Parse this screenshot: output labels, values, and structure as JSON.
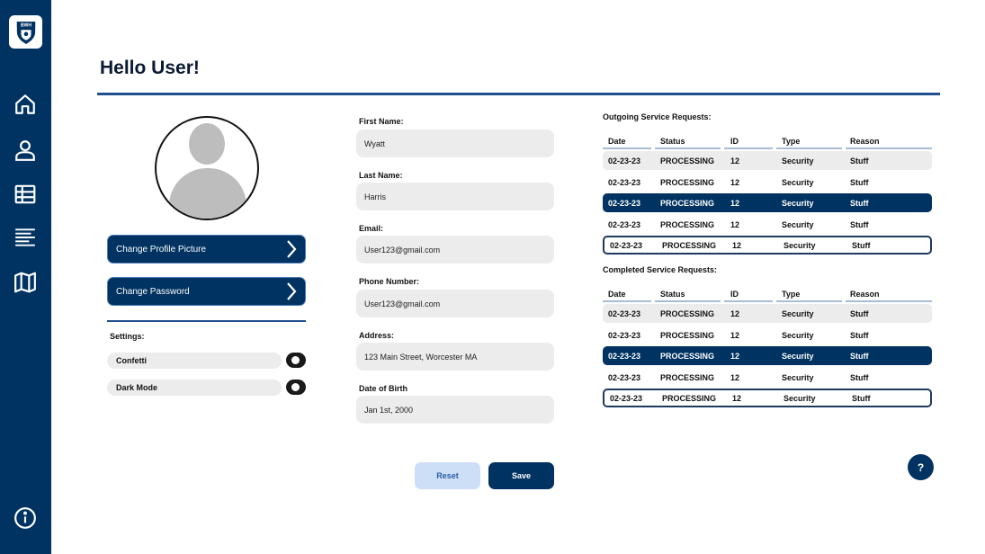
{
  "sidebar": {
    "logo_text": "BWH",
    "items": [
      {
        "icon": "home-icon"
      },
      {
        "icon": "user-icon"
      },
      {
        "icon": "table-icon"
      },
      {
        "icon": "list-icon"
      },
      {
        "icon": "map-icon"
      }
    ],
    "info_icon": "info-icon"
  },
  "header": {
    "title": "Hello User!"
  },
  "profile": {
    "change_picture_label": "Change Profile Picture",
    "change_password_label": "Change Password",
    "settings_label": "Settings:",
    "settings": [
      {
        "label": "Confetti"
      },
      {
        "label": "Dark Mode"
      }
    ]
  },
  "form": {
    "fields": [
      {
        "label": "First Name:",
        "value": "Wyatt"
      },
      {
        "label": "Last Name:",
        "value": "Harris"
      },
      {
        "label": "Email:",
        "value": "User123@gmail.com"
      },
      {
        "label": "Phone Number:",
        "value": "User123@gmail.com"
      },
      {
        "label": "Address:",
        "value": "123 Main Street, Worcester MA"
      },
      {
        "label": "Date of Birth",
        "value": "Jan 1st, 2000"
      }
    ],
    "reset_label": "Reset",
    "save_label": "Save"
  },
  "outgoing": {
    "title": "Outgoing Service Requests:",
    "columns": [
      "Date",
      "Status",
      "ID",
      "Type",
      "Reason"
    ],
    "rows": [
      {
        "date": "02-23-23",
        "status": "PROCESSING",
        "id": "12",
        "type": "Security",
        "reason": "Stuff",
        "style": "grey"
      },
      {
        "date": "02-23-23",
        "status": "PROCESSING",
        "id": "12",
        "type": "Security",
        "reason": "Stuff",
        "style": "plain"
      },
      {
        "date": "02-23-23",
        "status": "PROCESSING",
        "id": "12",
        "type": "Security",
        "reason": "Stuff",
        "style": "dark"
      },
      {
        "date": "02-23-23",
        "status": "PROCESSING",
        "id": "12",
        "type": "Security",
        "reason": "Stuff",
        "style": "plain"
      },
      {
        "date": "02-23-23",
        "status": "PROCESSING",
        "id": "12",
        "type": "Security",
        "reason": "Stuff",
        "style": "outlined"
      }
    ]
  },
  "completed": {
    "title": "Completed Service Requests:",
    "columns": [
      "Date",
      "Status",
      "ID",
      "Type",
      "Reason"
    ],
    "rows": [
      {
        "date": "02-23-23",
        "status": "PROCESSING",
        "id": "12",
        "type": "Security",
        "reason": "Stuff",
        "style": "grey"
      },
      {
        "date": "02-23-23",
        "status": "PROCESSING",
        "id": "12",
        "type": "Security",
        "reason": "Stuff",
        "style": "plain"
      },
      {
        "date": "02-23-23",
        "status": "PROCESSING",
        "id": "12",
        "type": "Security",
        "reason": "Stuff",
        "style": "dark"
      },
      {
        "date": "02-23-23",
        "status": "PROCESSING",
        "id": "12",
        "type": "Security",
        "reason": "Stuff",
        "style": "plain"
      },
      {
        "date": "02-23-23",
        "status": "PROCESSING",
        "id": "12",
        "type": "Security",
        "reason": "Stuff",
        "style": "outlined"
      }
    ]
  },
  "help_label": "?",
  "colors": {
    "primary": "#003361",
    "accent_line": "#1f4f8f",
    "light_button": "#cddff7",
    "field_bg": "#ececec"
  }
}
